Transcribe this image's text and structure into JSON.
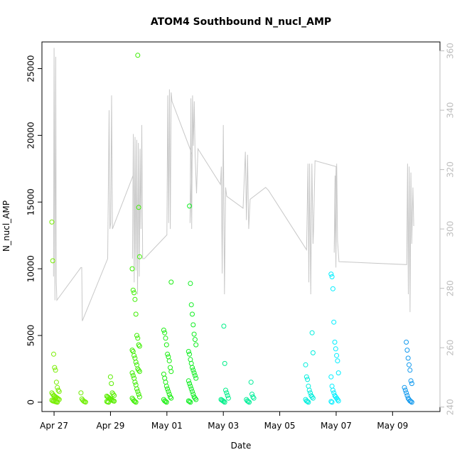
{
  "chart_data": {
    "type": "scatter",
    "title": "ATOM4 Southbound N_nucl_AMP",
    "xlabel": "Date",
    "ylabel": "N_nucl_AMP",
    "x_is_date": true,
    "x_tick_labels": [
      "Apr 27",
      "Apr 29",
      "May 01",
      "May 03",
      "May 05",
      "May 07",
      "May 09"
    ],
    "x_tick_values": [
      0,
      2,
      4,
      6,
      8,
      10,
      12
    ],
    "x_range_days": [
      -0.43,
      13.68
    ],
    "ylim": [
      -700,
      27000
    ],
    "y_ticks": [
      0,
      5000,
      10000,
      15000,
      20000,
      25000
    ],
    "y_right_ticks": [
      240,
      260,
      280,
      300,
      320,
      340,
      360
    ],
    "y_right_range": [
      238.5,
      363
    ],
    "scatter_series": {
      "name": "N_nucl_AMP",
      "marker": "open-circle",
      "clusters": [
        {
          "day": 0.05,
          "color": "#77ee00",
          "values": [
            13500,
            10600,
            3600,
            2600,
            2400,
            1500,
            1100,
            900,
            800,
            700,
            600,
            500,
            450,
            400,
            350,
            300,
            250,
            200,
            150,
            100,
            80,
            60,
            40,
            20,
            0
          ]
        },
        {
          "day": 1.02,
          "color": "#6eee00",
          "values": [
            700,
            250,
            150,
            80,
            40,
            10
          ]
        },
        {
          "day": 2.0,
          "color": "#5aee00",
          "values": [
            1900,
            1400,
            700,
            600,
            500,
            450,
            400,
            350,
            300,
            250,
            200,
            150,
            100,
            80,
            50,
            20,
            0
          ]
        },
        {
          "day": 2.9,
          "color": "#3cee00",
          "values": [
            26000,
            14600,
            10900,
            10000,
            8400,
            8200,
            7700,
            6600,
            5000,
            4800,
            4300,
            4200,
            3900,
            3800,
            3500,
            3300,
            3000,
            2800,
            2500,
            2400,
            2300,
            2200,
            2000,
            1800,
            1500,
            1300,
            1000,
            800,
            600,
            400,
            300,
            200,
            100,
            50,
            0
          ]
        },
        {
          "day": 4.02,
          "color": "#1aee11",
          "values": [
            9000,
            5400,
            5200,
            4800,
            4300,
            3600,
            3400,
            3100,
            2600,
            2300,
            2100,
            1800,
            1500,
            1200,
            1000,
            800,
            600,
            400,
            300,
            200,
            100,
            50,
            0
          ]
        },
        {
          "day": 4.9,
          "color": "#10ee22",
          "values": [
            14700,
            8900,
            7300,
            6600,
            5800,
            5100,
            4700,
            4300,
            3800,
            3600,
            3200,
            2900,
            2600,
            2400,
            2200,
            2000,
            1800,
            1600,
            1400,
            1200,
            1000,
            800,
            600,
            400,
            300,
            200,
            100,
            50,
            0
          ]
        },
        {
          "day": 6.05,
          "color": "#00ee88",
          "values": [
            5700,
            2900,
            900,
            700,
            500,
            300,
            200,
            150,
            100,
            50,
            0
          ]
        },
        {
          "day": 6.95,
          "color": "#00ee99",
          "values": [
            1500,
            600,
            400,
            300,
            200,
            100,
            50,
            0
          ]
        },
        {
          "day": 9.05,
          "color": "#00eedd",
          "values": [
            5200,
            3700,
            2800,
            1900,
            1700,
            1200,
            900,
            700,
            500,
            400,
            300,
            200,
            100,
            50,
            0
          ]
        },
        {
          "day": 9.95,
          "color": "#00eeff",
          "values": [
            9600,
            9400,
            8500,
            6000,
            4500,
            4000,
            3500,
            3100,
            2200,
            1900,
            1200,
            900,
            700,
            500,
            400,
            300,
            200,
            100,
            50,
            0
          ]
        },
        {
          "day": 12.55,
          "color": "#1199ee",
          "values": [
            4500,
            3900,
            3300,
            2800,
            2400,
            1600,
            1400,
            1100,
            900,
            700,
            500,
            300,
            200,
            100,
            50,
            0
          ]
        }
      ]
    },
    "line_series": {
      "name": "right-axis trace",
      "color": "#c8c8c8",
      "axis": "right",
      "points": [
        [
          -0.02,
          284
        ],
        [
          0.0,
          361
        ],
        [
          0.03,
          276
        ],
        [
          0.06,
          358
        ],
        [
          0.08,
          282
        ],
        [
          0.1,
          276
        ],
        [
          0.95,
          287
        ],
        [
          0.98,
          287
        ],
        [
          1.0,
          269
        ],
        [
          1.9,
          290
        ],
        [
          1.95,
          340
        ],
        [
          1.98,
          300
        ],
        [
          2.01,
          302
        ],
        [
          2.04,
          345
        ],
        [
          2.07,
          300
        ],
        [
          2.8,
          318
        ],
        [
          2.78,
          290
        ],
        [
          2.81,
          332
        ],
        [
          2.84,
          282
        ],
        [
          2.87,
          331
        ],
        [
          2.9,
          286
        ],
        [
          2.93,
          330
        ],
        [
          2.96,
          278
        ],
        [
          2.99,
          329
        ],
        [
          3.02,
          284
        ],
        [
          3.05,
          327
        ],
        [
          3.08,
          300
        ],
        [
          3.11,
          335
        ],
        [
          3.14,
          290
        ],
        [
          3.2,
          290
        ],
        [
          4.0,
          298
        ],
        [
          4.03,
          345
        ],
        [
          4.06,
          302
        ],
        [
          4.09,
          347
        ],
        [
          4.12,
          300
        ],
        [
          4.15,
          346
        ],
        [
          4.18,
          343
        ],
        [
          4.9,
          325
        ],
        [
          4.82,
          302
        ],
        [
          4.85,
          344
        ],
        [
          4.88,
          300
        ],
        [
          4.91,
          345
        ],
        [
          4.94,
          328
        ],
        [
          4.97,
          343
        ],
        [
          5.0,
          325
        ],
        [
          5.05,
          312
        ],
        [
          5.1,
          327
        ],
        [
          5.9,
          315
        ],
        [
          5.93,
          321
        ],
        [
          5.96,
          285
        ],
        [
          6.0,
          335
        ],
        [
          6.04,
          278
        ],
        [
          6.08,
          314
        ],
        [
          6.12,
          311
        ],
        [
          6.7,
          307
        ],
        [
          6.78,
          326
        ],
        [
          6.82,
          303
        ],
        [
          6.86,
          325
        ],
        [
          6.9,
          300
        ],
        [
          6.95,
          310
        ],
        [
          7.5,
          314
        ],
        [
          7.6,
          313
        ],
        [
          8.95,
          293
        ],
        [
          9.0,
          322
        ],
        [
          9.03,
          282
        ],
        [
          9.06,
          322
        ],
        [
          9.1,
          278
        ],
        [
          9.14,
          322
        ],
        [
          9.18,
          295
        ],
        [
          9.2,
          300
        ],
        [
          9.25,
          323
        ],
        [
          10.0,
          321
        ],
        [
          9.93,
          292
        ],
        [
          9.96,
          318
        ],
        [
          9.99,
          287
        ],
        [
          10.02,
          322
        ],
        [
          10.05,
          296
        ],
        [
          10.1,
          289
        ],
        [
          12.5,
          288
        ],
        [
          12.53,
          322
        ],
        [
          12.56,
          278
        ],
        [
          12.59,
          321
        ],
        [
          12.62,
          272
        ],
        [
          12.65,
          319
        ],
        [
          12.68,
          295
        ],
        [
          12.72,
          314
        ],
        [
          12.75,
          301
        ]
      ]
    }
  }
}
